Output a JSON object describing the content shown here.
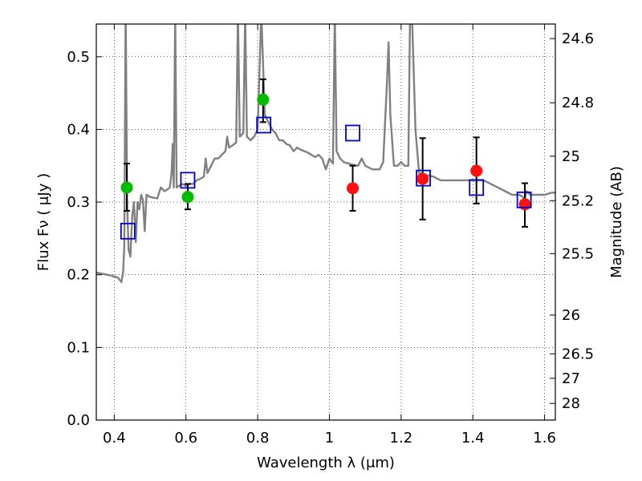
{
  "chart_data": {
    "type": "scatter",
    "xlabel": "Wavelength  λ (μm)",
    "ylabel": "Flux  Fν  ( μJy )",
    "ylabel_right": "Magnitude (AB)",
    "xlim": [
      0.35,
      1.63
    ],
    "ylim": [
      0.0,
      0.545
    ],
    "grid": true,
    "x_ticks": [
      {
        "v": 0.4,
        "label": "0.4"
      },
      {
        "v": 0.6,
        "label": "0.6"
      },
      {
        "v": 0.8,
        "label": "0.8"
      },
      {
        "v": 1.0,
        "label": "1"
      },
      {
        "v": 1.2,
        "label": "1.2"
      },
      {
        "v": 1.4,
        "label": "1.4"
      },
      {
        "v": 1.6,
        "label": "1.6"
      }
    ],
    "y_ticks": [
      {
        "v": 0.0,
        "label": "0.0"
      },
      {
        "v": 0.1,
        "label": "0.1"
      },
      {
        "v": 0.2,
        "label": "0.2"
      },
      {
        "v": 0.3,
        "label": "0.3"
      },
      {
        "v": 0.4,
        "label": "0.4"
      },
      {
        "v": 0.5,
        "label": "0.5"
      }
    ],
    "right_ticks": [
      {
        "flux": 0.525,
        "label": "24.6"
      },
      {
        "flux": 0.4367,
        "label": "24.8"
      },
      {
        "flux": 0.3631,
        "label": "25"
      },
      {
        "flux": 0.302,
        "label": "25.2"
      },
      {
        "flux": 0.2291,
        "label": "25.5"
      },
      {
        "flux": 0.1445,
        "label": "26"
      },
      {
        "flux": 0.0912,
        "label": "26.5"
      },
      {
        "flux": 0.0575,
        "label": "27"
      },
      {
        "flux": 0.0229,
        "label": "28"
      }
    ],
    "series": [
      {
        "kind": "model",
        "color": "#808080",
        "points": [
          [
            0.35,
            0.203
          ],
          [
            0.37,
            0.201
          ],
          [
            0.39,
            0.199
          ],
          [
            0.41,
            0.196
          ],
          [
            0.42,
            0.19
          ],
          [
            0.425,
            0.205
          ],
          [
            0.428,
            0.24
          ],
          [
            0.432,
            0.57
          ],
          [
            0.436,
            0.3
          ],
          [
            0.44,
            0.235
          ],
          [
            0.445,
            0.225
          ],
          [
            0.45,
            0.28
          ],
          [
            0.455,
            0.3
          ],
          [
            0.46,
            0.245
          ],
          [
            0.465,
            0.3
          ],
          [
            0.47,
            0.29
          ],
          [
            0.475,
            0.31
          ],
          [
            0.48,
            0.303
          ],
          [
            0.485,
            0.26
          ],
          [
            0.49,
            0.31
          ],
          [
            0.5,
            0.307
          ],
          [
            0.52,
            0.305
          ],
          [
            0.53,
            0.32
          ],
          [
            0.54,
            0.315
          ],
          [
            0.55,
            0.318
          ],
          [
            0.555,
            0.32
          ],
          [
            0.56,
            0.34
          ],
          [
            0.563,
            0.38
          ],
          [
            0.566,
            0.32
          ],
          [
            0.57,
            0.56
          ],
          [
            0.574,
            0.32
          ],
          [
            0.58,
            0.322
          ],
          [
            0.59,
            0.325
          ],
          [
            0.6,
            0.322
          ],
          [
            0.61,
            0.325
          ],
          [
            0.62,
            0.325
          ],
          [
            0.63,
            0.33
          ],
          [
            0.64,
            0.332
          ],
          [
            0.65,
            0.335
          ],
          [
            0.655,
            0.36
          ],
          [
            0.66,
            0.34
          ],
          [
            0.67,
            0.35
          ],
          [
            0.68,
            0.36
          ],
          [
            0.69,
            0.36
          ],
          [
            0.7,
            0.365
          ],
          [
            0.71,
            0.37
          ],
          [
            0.715,
            0.39
          ],
          [
            0.72,
            0.375
          ],
          [
            0.73,
            0.378
          ],
          [
            0.74,
            0.382
          ],
          [
            0.745,
            0.56
          ],
          [
            0.75,
            0.39
          ],
          [
            0.76,
            0.395
          ],
          [
            0.765,
            0.56
          ],
          [
            0.77,
            0.39
          ],
          [
            0.78,
            0.385
          ],
          [
            0.79,
            0.39
          ],
          [
            0.8,
            0.4
          ],
          [
            0.81,
            0.56
          ],
          [
            0.82,
            0.42
          ],
          [
            0.83,
            0.41
          ],
          [
            0.84,
            0.4
          ],
          [
            0.85,
            0.395
          ],
          [
            0.86,
            0.385
          ],
          [
            0.87,
            0.385
          ],
          [
            0.88,
            0.38
          ],
          [
            0.89,
            0.378
          ],
          [
            0.9,
            0.37
          ],
          [
            0.91,
            0.375
          ],
          [
            0.92,
            0.372
          ],
          [
            0.93,
            0.37
          ],
          [
            0.94,
            0.368
          ],
          [
            0.95,
            0.365
          ],
          [
            0.96,
            0.362
          ],
          [
            0.97,
            0.365
          ],
          [
            0.98,
            0.36
          ],
          [
            0.99,
            0.345
          ],
          [
            1.0,
            0.36
          ],
          [
            1.01,
            0.353
          ],
          [
            1.015,
            0.56
          ],
          [
            1.02,
            0.37
          ],
          [
            1.03,
            0.36
          ],
          [
            1.04,
            0.355
          ],
          [
            1.06,
            0.352
          ],
          [
            1.08,
            0.35
          ],
          [
            1.09,
            0.36
          ],
          [
            1.1,
            0.35
          ],
          [
            1.12,
            0.345
          ],
          [
            1.14,
            0.345
          ],
          [
            1.15,
            0.355
          ],
          [
            1.16,
            0.46
          ],
          [
            1.165,
            0.52
          ],
          [
            1.17,
            0.42
          ],
          [
            1.18,
            0.35
          ],
          [
            1.19,
            0.35
          ],
          [
            1.2,
            0.355
          ],
          [
            1.21,
            0.35
          ],
          [
            1.22,
            0.35
          ],
          [
            1.225,
            0.56
          ],
          [
            1.23,
            0.56
          ],
          [
            1.24,
            0.4
          ],
          [
            1.25,
            0.34
          ],
          [
            1.27,
            0.337
          ],
          [
            1.29,
            0.335
          ],
          [
            1.31,
            0.33
          ],
          [
            1.33,
            0.33
          ],
          [
            1.35,
            0.33
          ],
          [
            1.37,
            0.33
          ],
          [
            1.39,
            0.33
          ],
          [
            1.41,
            0.33
          ],
          [
            1.43,
            0.33
          ],
          [
            1.45,
            0.325
          ],
          [
            1.47,
            0.32
          ],
          [
            1.49,
            0.315
          ],
          [
            1.51,
            0.31
          ],
          [
            1.53,
            0.31
          ],
          [
            1.545,
            0.305
          ],
          [
            1.55,
            0.315
          ],
          [
            1.56,
            0.31
          ],
          [
            1.58,
            0.31
          ],
          [
            1.6,
            0.31
          ],
          [
            1.62,
            0.313
          ],
          [
            1.63,
            0.313
          ]
        ]
      },
      {
        "kind": "observed",
        "color": "#00bb00",
        "points": [
          {
            "x": 0.435,
            "y": 0.32,
            "err_lo": 0.288,
            "err_hi": 0.353
          },
          {
            "x": 0.605,
            "y": 0.307,
            "err_lo": 0.29,
            "err_hi": 0.325
          },
          {
            "x": 0.815,
            "y": 0.441,
            "err_lo": 0.41,
            "err_hi": 0.469
          }
        ]
      },
      {
        "kind": "observed",
        "color": "#ff1010",
        "points": [
          {
            "x": 1.065,
            "y": 0.319,
            "err_lo": 0.288,
            "err_hi": 0.35
          },
          {
            "x": 1.26,
            "y": 0.332,
            "err_lo": 0.276,
            "err_hi": 0.388
          },
          {
            "x": 1.41,
            "y": 0.343,
            "err_lo": 0.298,
            "err_hi": 0.389
          },
          {
            "x": 1.545,
            "y": 0.297,
            "err_lo": 0.266,
            "err_hi": 0.326
          }
        ]
      },
      {
        "kind": "model_photometry",
        "color": "#0000cc",
        "points": [
          {
            "x": 0.438,
            "y": 0.26
          },
          {
            "x": 0.605,
            "y": 0.33
          },
          {
            "x": 0.817,
            "y": 0.406
          },
          {
            "x": 1.065,
            "y": 0.395
          },
          {
            "x": 1.262,
            "y": 0.333
          },
          {
            "x": 1.41,
            "y": 0.32
          },
          {
            "x": 1.543,
            "y": 0.303
          }
        ]
      }
    ]
  }
}
